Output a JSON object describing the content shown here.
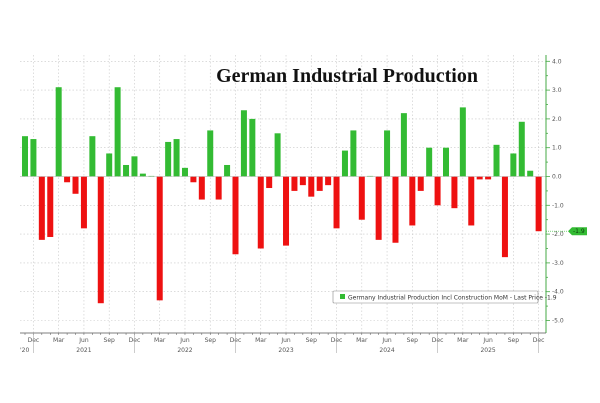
{
  "chart_data": {
    "type": "bar",
    "title": "German Industrial Production",
    "xlabel": "",
    "ylabel": "",
    "ylim": [
      -5.0,
      4.0
    ],
    "y_ticks": [
      "4.0",
      "3.0",
      "2.0",
      "1.0",
      "0.0",
      "-1.0",
      "-2.0",
      "-3.0",
      "-4.0",
      "-5.0"
    ],
    "y_tick_values": [
      4,
      3,
      2,
      1,
      0,
      -1,
      -2,
      -3,
      -4,
      -5
    ],
    "y_axis_side": "right",
    "grid": true,
    "legend": {
      "placement": "bottom-right",
      "entries": [
        "Germany Industrial Production Incl Construction MoM - Last Price -1.9"
      ]
    },
    "last_price_label": "-1.9",
    "colors": {
      "positive": "#33bb33",
      "negative": "#ee1111",
      "axis": "#44aa44"
    },
    "x_month_ticks": [
      {
        "label": "Dec",
        "index": 1
      },
      {
        "label": "Mar",
        "index": 4
      },
      {
        "label": "Jun",
        "index": 7
      },
      {
        "label": "Sep",
        "index": 10
      },
      {
        "label": "Dec",
        "index": 13
      },
      {
        "label": "Mar",
        "index": 16
      },
      {
        "label": "Jun",
        "index": 19
      },
      {
        "label": "Sep",
        "index": 22
      },
      {
        "label": "Dec",
        "index": 25
      },
      {
        "label": "Mar",
        "index": 28
      },
      {
        "label": "Jun",
        "index": 31
      },
      {
        "label": "Sep",
        "index": 34
      },
      {
        "label": "Dec",
        "index": 37
      },
      {
        "label": "Mar",
        "index": 40
      },
      {
        "label": "Jun",
        "index": 43
      },
      {
        "label": "Sep",
        "index": 46
      },
      {
        "label": "Dec",
        "index": 49
      },
      {
        "label": "Mar",
        "index": 52
      },
      {
        "label": "Jun",
        "index": 55
      },
      {
        "label": "Sep",
        "index": 58
      },
      {
        "label": "Dec",
        "index": 61
      }
    ],
    "x_year_ticks": [
      {
        "label": "'20",
        "index": 1
      },
      {
        "label": "2021",
        "index": 7
      },
      {
        "label": "2022",
        "index": 19
      },
      {
        "label": "2023",
        "index": 31
      },
      {
        "label": "2024",
        "index": 43
      },
      {
        "label": "2025",
        "index": 55
      }
    ],
    "categories": [
      "Nov 2020",
      "Dec 2020",
      "Jan 2021",
      "Feb 2021",
      "Mar 2021",
      "Apr 2021",
      "May 2021",
      "Jun 2021",
      "Jul 2021",
      "Aug 2021",
      "Sep 2021",
      "Oct 2021",
      "Nov 2021",
      "Dec 2021",
      "Jan 2022",
      "Feb 2022",
      "Mar 2022",
      "Apr 2022",
      "May 2022",
      "Jun 2022",
      "Jul 2022",
      "Aug 2022",
      "Sep 2022",
      "Oct 2022",
      "Nov 2022",
      "Dec 2022",
      "Jan 2023",
      "Feb 2023",
      "Mar 2023",
      "Apr 2023",
      "May 2023",
      "Jun 2023",
      "Jul 2023",
      "Aug 2023",
      "Sep 2023",
      "Oct 2023",
      "Nov 2023",
      "Dec 2023",
      "Jan 2024",
      "Feb 2024",
      "Mar 2024",
      "Apr 2024",
      "May 2024",
      "Jun 2024",
      "Jul 2024",
      "Aug 2024",
      "Sep 2024",
      "Oct 2024",
      "Nov 2024",
      "Dec 2024",
      "Jan 2025",
      "Feb 2025",
      "Mar 2025",
      "Apr 2025",
      "May 2025",
      "Jun 2025",
      "Jul 2025",
      "Aug 2025",
      "Sep 2025",
      "Oct 2025",
      "Nov 2025",
      "Dec 2025"
    ],
    "values": [
      1.4,
      1.3,
      -2.2,
      -2.1,
      3.1,
      -0.2,
      -0.6,
      -1.8,
      1.4,
      -4.4,
      0.8,
      3.1,
      0.4,
      0.7,
      0.1,
      0.02,
      -4.3,
      1.2,
      1.3,
      0.3,
      -0.2,
      -0.8,
      1.6,
      -0.8,
      0.4,
      -2.7,
      2.3,
      2.0,
      -2.5,
      -0.4,
      1.5,
      -2.4,
      -0.5,
      -0.3,
      -0.7,
      -0.5,
      -0.3,
      -1.8,
      0.9,
      1.6,
      -1.5,
      0.02,
      -2.2,
      1.6,
      -2.3,
      2.2,
      -1.7,
      -0.5,
      1.0,
      -1.0,
      1.0,
      -1.1,
      2.4,
      -1.7,
      -0.1,
      -0.1,
      1.1,
      -2.8,
      0.8,
      1.9,
      0.2,
      -1.9
    ]
  }
}
